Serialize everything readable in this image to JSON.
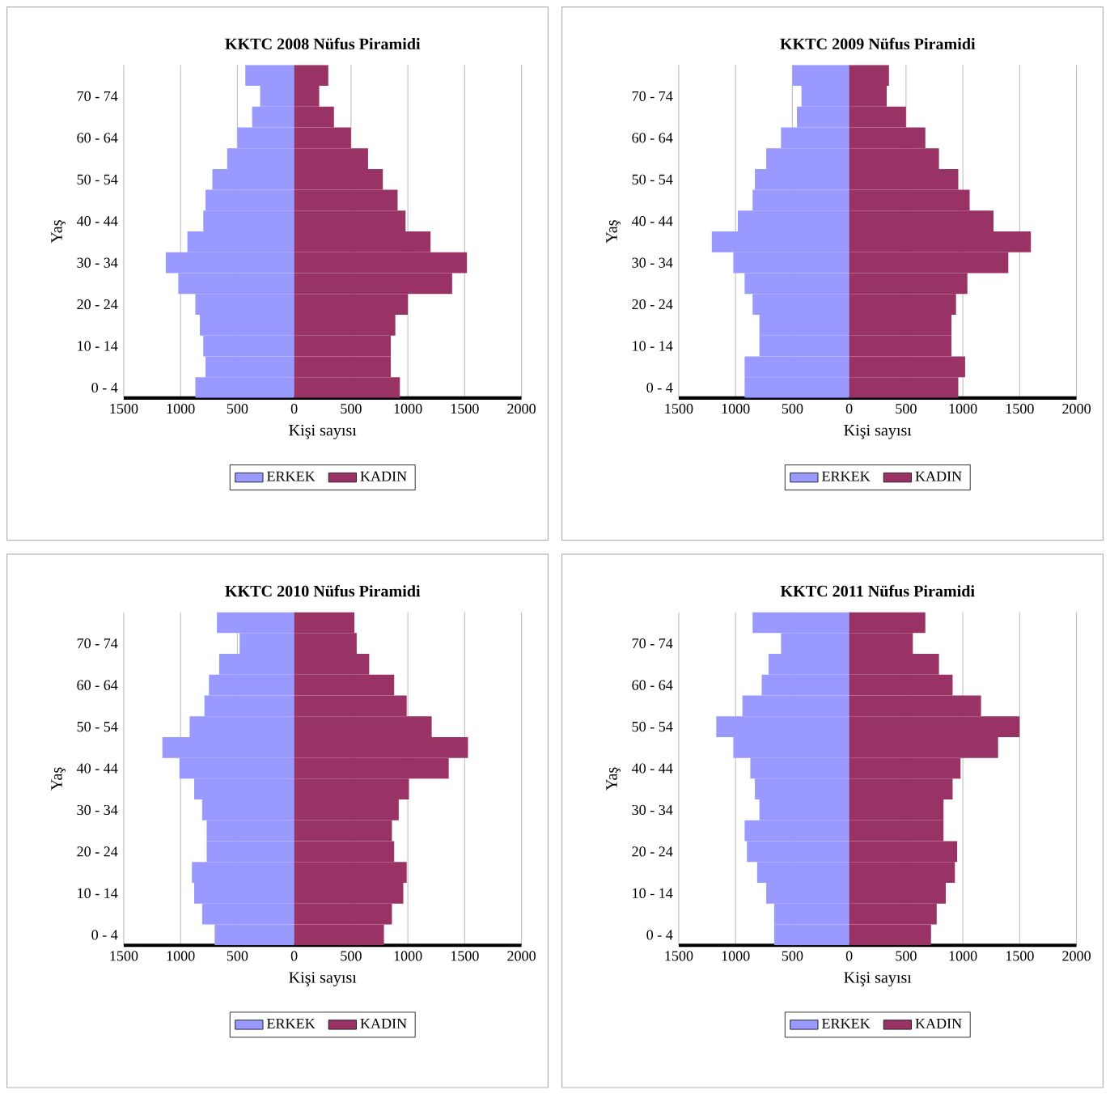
{
  "chart_data": [
    {
      "type": "bar",
      "orientation": "horizontal",
      "stacked": true,
      "title": "KKTC 2008 Nüfus Piramidi",
      "xlabel": "Kişi sayısı",
      "ylabel": "Yaş",
      "categories": [
        null,
        "70 - 74",
        null,
        "60 - 64",
        null,
        "50 - 54",
        null,
        "40 - 44",
        null,
        "30 - 34",
        null,
        "20 - 24",
        null,
        "10 - 14",
        null,
        "0 - 4"
      ],
      "series": [
        {
          "name": "ERKEK",
          "color": "#9999ff",
          "values": [
            -430,
            -300,
            -370,
            -500,
            -590,
            -720,
            -780,
            -800,
            -940,
            -1130,
            -1020,
            -870,
            -830,
            -800,
            -780,
            -870
          ]
        },
        {
          "name": "KADIN",
          "color": "#993366",
          "values": [
            300,
            220,
            350,
            500,
            650,
            780,
            910,
            980,
            1200,
            1520,
            1390,
            1000,
            890,
            850,
            850,
            930
          ]
        }
      ],
      "xlim": [
        -1500,
        2000
      ],
      "xticks": [
        {
          "value": -1500,
          "label": "1500"
        },
        {
          "value": -1000,
          "label": "1000"
        },
        {
          "value": -500,
          "label": "500"
        },
        0,
        500,
        1000,
        1500,
        2000
      ],
      "grid": "x",
      "legend": "bottom"
    },
    {
      "type": "bar",
      "orientation": "horizontal",
      "stacked": true,
      "title": "KKTC 2009 Nüfus Piramidi",
      "xlabel": "Kişi sayısı",
      "ylabel": "Yaş",
      "categories": [
        null,
        "70 - 74",
        null,
        "60 - 64",
        null,
        "50 - 54",
        null,
        "40 - 44",
        null,
        "30 - 34",
        null,
        "20 - 24",
        null,
        "10 - 14",
        null,
        "0 - 4"
      ],
      "series": [
        {
          "name": "ERKEK",
          "color": "#9999ff",
          "values": [
            -500,
            -420,
            -460,
            -600,
            -730,
            -830,
            -850,
            -980,
            -1210,
            -1020,
            -920,
            -850,
            -790,
            -790,
            -920,
            -920
          ]
        },
        {
          "name": "KADIN",
          "color": "#993366",
          "values": [
            350,
            330,
            500,
            670,
            790,
            960,
            1060,
            1270,
            1600,
            1400,
            1040,
            940,
            900,
            900,
            1020,
            960
          ]
        }
      ],
      "xlim": [
        -1500,
        2000
      ],
      "xticks": [
        {
          "value": -1500,
          "label": "1500"
        },
        {
          "value": -1000,
          "label": "1000"
        },
        {
          "value": -500,
          "label": "500"
        },
        0,
        500,
        1000,
        1500,
        2000
      ],
      "grid": "x",
      "legend": "bottom"
    },
    {
      "type": "bar",
      "orientation": "horizontal",
      "stacked": true,
      "title": "KKTC 2010 Nüfus Piramidi",
      "xlabel": "Kişi sayısı",
      "ylabel": "Yaş",
      "categories": [
        null,
        "70 - 74",
        null,
        "60 - 64",
        null,
        "50 - 54",
        null,
        "40 - 44",
        null,
        "30 - 34",
        null,
        "20 - 24",
        null,
        "10 - 14",
        null,
        "0 - 4"
      ],
      "series": [
        {
          "name": "ERKEK",
          "color": "#9999ff",
          "values": [
            -680,
            -480,
            -660,
            -750,
            -790,
            -920,
            -1160,
            -1010,
            -880,
            -810,
            -770,
            -770,
            -900,
            -880,
            -810,
            -700
          ]
        },
        {
          "name": "KADIN",
          "color": "#993366",
          "values": [
            530,
            550,
            660,
            880,
            990,
            1210,
            1530,
            1360,
            1010,
            920,
            860,
            880,
            990,
            960,
            860,
            790
          ]
        }
      ],
      "xlim": [
        -1500,
        2000
      ],
      "xticks": [
        {
          "value": -1500,
          "label": "1500"
        },
        {
          "value": -1000,
          "label": "1000"
        },
        {
          "value": -500,
          "label": "500"
        },
        0,
        500,
        1000,
        1500,
        2000
      ],
      "grid": "x",
      "legend": "bottom"
    },
    {
      "type": "bar",
      "orientation": "horizontal",
      "stacked": true,
      "title": "KKTC 2011 Nüfus Piramidi",
      "xlabel": "Kişi sayısı",
      "ylabel": "Yaş",
      "categories": [
        null,
        "70 - 74",
        null,
        "60 - 64",
        null,
        "50 - 54",
        null,
        "40 - 44",
        null,
        "30 - 34",
        null,
        "20 - 24",
        null,
        "10 - 14",
        null,
        "0 - 4"
      ],
      "series": [
        {
          "name": "ERKEK",
          "color": "#9999ff",
          "values": [
            -850,
            -600,
            -710,
            -770,
            -940,
            -1170,
            -1020,
            -870,
            -830,
            -790,
            -920,
            -900,
            -810,
            -730,
            -660,
            -660
          ]
        },
        {
          "name": "KADIN",
          "color": "#993366",
          "values": [
            670,
            560,
            790,
            910,
            1160,
            1500,
            1310,
            980,
            910,
            830,
            830,
            950,
            930,
            850,
            770,
            720
          ]
        }
      ],
      "xlim": [
        -1500,
        2000
      ],
      "xticks": [
        {
          "value": -1500,
          "label": "1500"
        },
        {
          "value": -1000,
          "label": "1000"
        },
        {
          "value": -500,
          "label": "500"
        },
        0,
        500,
        1000,
        1500,
        2000
      ],
      "grid": "x",
      "legend": "bottom"
    }
  ]
}
